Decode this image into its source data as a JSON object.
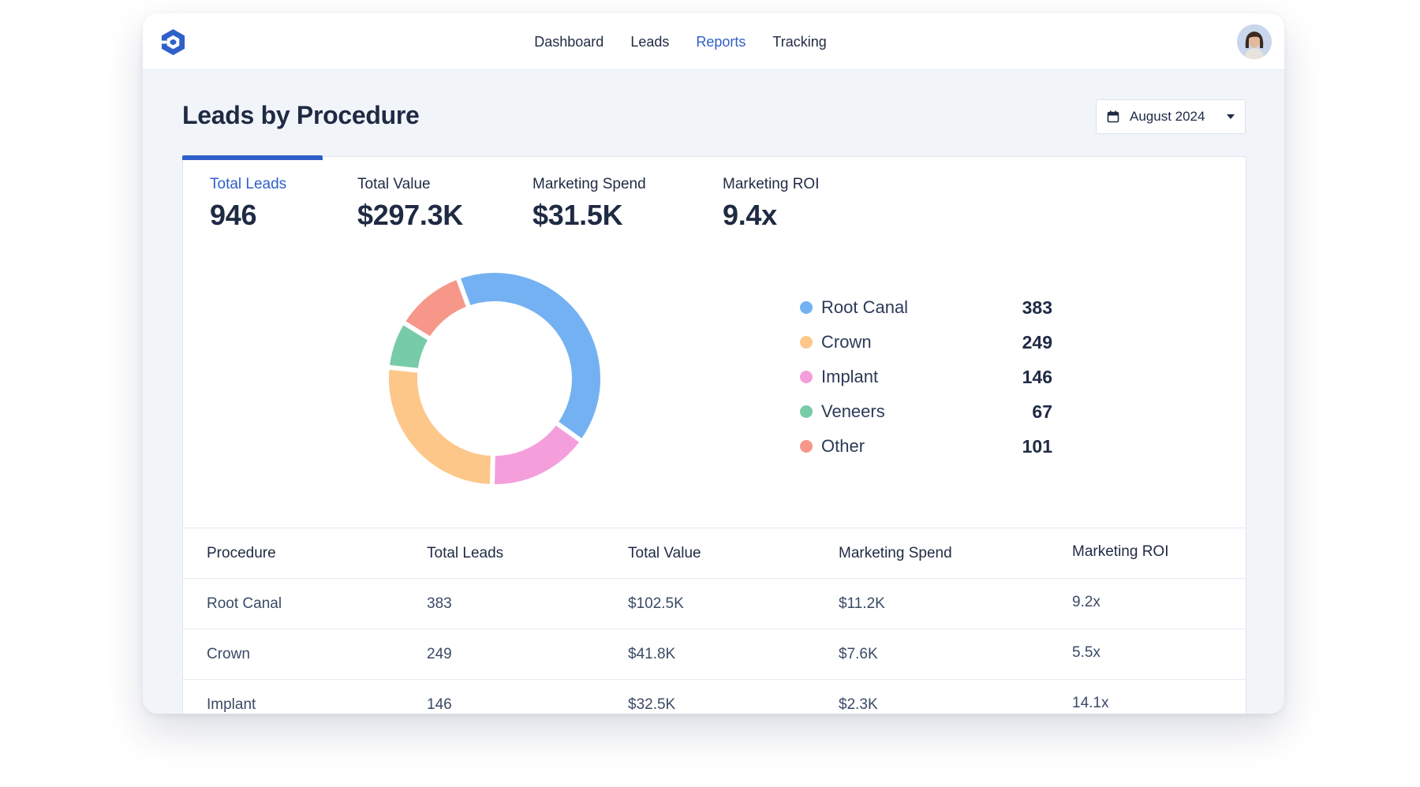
{
  "nav": {
    "items": [
      {
        "label": "Dashboard",
        "active": false
      },
      {
        "label": "Leads",
        "active": false
      },
      {
        "label": "Reports",
        "active": true
      },
      {
        "label": "Tracking",
        "active": false
      }
    ]
  },
  "page": {
    "title": "Leads by Procedure"
  },
  "date_picker": {
    "label": "August 2024",
    "icon": "calendar-icon"
  },
  "stats": [
    {
      "label": "Total Leads",
      "value": "946"
    },
    {
      "label": "Total Value",
      "value": "$297.3K"
    },
    {
      "label": "Marketing Spend",
      "value": "$31.5K"
    },
    {
      "label": "Marketing ROI",
      "value": "9.4x"
    }
  ],
  "chart_data": {
    "type": "pie",
    "categories": [
      "Root Canal",
      "Implant",
      "Crown",
      "Veneers",
      "Other"
    ],
    "values": [
      383,
      146,
      249,
      67,
      101
    ],
    "colors": [
      "#74b1f2",
      "#f49fdc",
      "#fdc789",
      "#77cba8",
      "#f6978a"
    ],
    "legend": [
      {
        "name": "Root Canal",
        "value": "383",
        "color": "#74b1f2"
      },
      {
        "name": "Crown",
        "value": "249",
        "color": "#fdc789"
      },
      {
        "name": "Implant",
        "value": "146",
        "color": "#f49fdc"
      },
      {
        "name": "Veneers",
        "value": "67",
        "color": "#77cba8"
      },
      {
        "name": "Other",
        "value": "101",
        "color": "#f6978a"
      }
    ]
  },
  "table": {
    "headers": [
      "Procedure",
      "Total Leads",
      "Total Value",
      "Marketing Spend",
      "Marketing ROI"
    ],
    "rows": [
      [
        "Root Canal",
        "383",
        "$102.5K",
        "$11.2K",
        "9.2x"
      ],
      [
        "Crown",
        "249",
        "$41.8K",
        "$7.6K",
        "5.5x"
      ],
      [
        "Implant",
        "146",
        "$32.5K",
        "$2.3K",
        "14.1x"
      ]
    ]
  },
  "colors": {
    "accent": "#2f5fc8",
    "text": "#1f2a44",
    "background": "#f1f5f9"
  }
}
